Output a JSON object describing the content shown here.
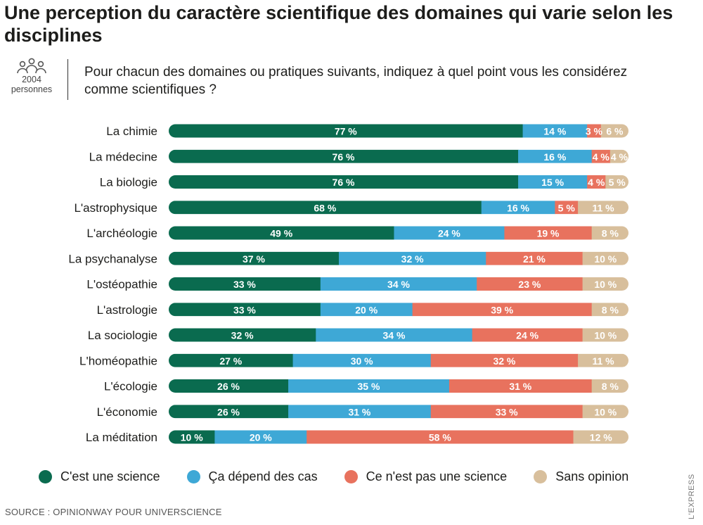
{
  "title": "Une perception du caractère scientifique des domaines qui varie selon les disciplines",
  "sample": {
    "count": "2004",
    "unit": "personnes"
  },
  "question": "Pour chacun des domaines ou pratiques suivants, indiquez à quel point vous les considérez comme scientifiques ?",
  "source": "SOURCE : OPINIONWAY POUR UNIVERSCIENCE",
  "credit": "L'EXPRESS",
  "colors": {
    "science": "#0a6b4f",
    "depends": "#3ea8d6",
    "not_science": "#e8725e",
    "no_opinion": "#d8bf9c"
  },
  "legend": [
    {
      "label": "C'est une science",
      "color": "#0a6b4f"
    },
    {
      "label": "Ça dépend des cas",
      "color": "#3ea8d6"
    },
    {
      "label": "Ce n'est pas une science",
      "color": "#e8725e"
    },
    {
      "label": "Sans opinion",
      "color": "#d8bf9c"
    }
  ],
  "chart_data": {
    "type": "bar",
    "orientation": "horizontal",
    "stacked": true,
    "unit": "%",
    "categories": [
      "La chimie",
      "La médecine",
      "La biologie",
      "L'astrophysique",
      "L'archéologie",
      "La psychanalyse",
      "L'ostéopathie",
      "L'astrologie",
      "La sociologie",
      "L'homéopathie",
      "L'écologie",
      "L'économie",
      "La méditation"
    ],
    "series": [
      {
        "name": "C'est une science",
        "values": [
          77,
          76,
          76,
          68,
          49,
          37,
          33,
          33,
          32,
          27,
          26,
          26,
          10
        ]
      },
      {
        "name": "Ça dépend des cas",
        "values": [
          14,
          16,
          15,
          16,
          24,
          32,
          34,
          20,
          34,
          30,
          35,
          31,
          20
        ]
      },
      {
        "name": "Ce n'est pas une science",
        "values": [
          3,
          4,
          4,
          5,
          19,
          21,
          23,
          39,
          24,
          32,
          31,
          33,
          58
        ]
      },
      {
        "name": "Sans opinion",
        "values": [
          6,
          4,
          5,
          11,
          8,
          10,
          10,
          8,
          10,
          11,
          8,
          10,
          12
        ]
      }
    ],
    "legend_position": "bottom",
    "grid": false
  }
}
